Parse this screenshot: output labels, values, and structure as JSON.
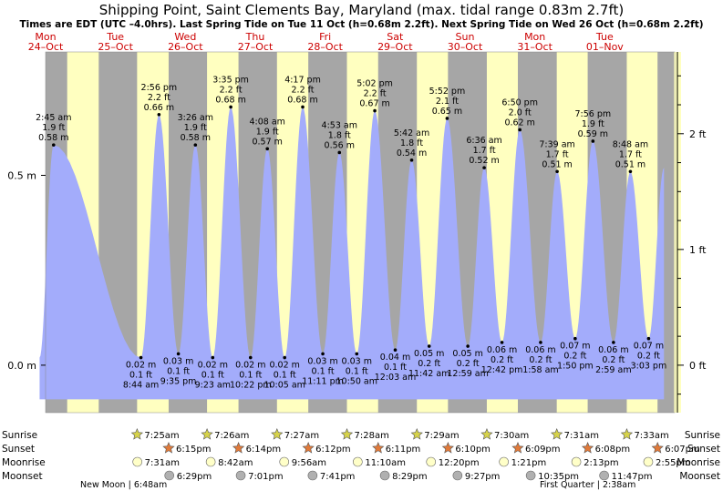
{
  "title": "Shipping Point, Saint Clements Bay, Maryland (max. tidal range 0.83m 2.7ft)",
  "subtitle": "Times are EDT (UTC –4.0hrs). Last Spring Tide on Tue 11 Oct (h=0.68m 2.2ft). Next Spring Tide on Wed 26 Oct (h=0.68m 2.2ft)",
  "colors": {
    "night": "#a6a6a6",
    "day": "#ffffc0",
    "tide": "#a3acfb",
    "title": "#000000",
    "weekend": "#cc0000"
  },
  "chart_data": {
    "type": "area",
    "title": "Shipping Point, Saint Clements Bay, Maryland (max. tidal range 0.83m 2.7ft)",
    "xlabel": "",
    "ylabel": "",
    "ylim_m": [
      -0.125,
      0.825
    ],
    "y_ticks_m": [
      {
        "value": 0.0,
        "label": "0.0 m"
      },
      {
        "value": 0.5,
        "label": "0.5 m"
      }
    ],
    "y_ticks_ft": [
      {
        "value": 0,
        "label": "0 ft"
      },
      {
        "value": 1,
        "label": "1 ft"
      },
      {
        "value": 2,
        "label": "2 ft"
      }
    ],
    "x_start_day": 24.0,
    "x_end_day": 33.0,
    "days": [
      {
        "dow": "Mon",
        "date": "24–Oct",
        "weekend": false
      },
      {
        "dow": "Tue",
        "date": "25–Oct",
        "weekend": false
      },
      {
        "dow": "Wed",
        "date": "26–Oct",
        "weekend": false
      },
      {
        "dow": "Thu",
        "date": "27–Oct",
        "weekend": false
      },
      {
        "dow": "Fri",
        "date": "28–Oct",
        "weekend": false
      },
      {
        "dow": "Sat",
        "date": "29–Oct",
        "weekend": true
      },
      {
        "dow": "Sun",
        "date": "30–Oct",
        "weekend": true
      },
      {
        "dow": "Mon",
        "date": "31–Oct",
        "weekend": false
      },
      {
        "dow": "Tue",
        "date": "01–Nov",
        "weekend": false
      }
    ],
    "daylight": [
      {
        "rise": "7:25",
        "set": "18:15"
      },
      {
        "rise": "7:25",
        "set": "18:15"
      },
      {
        "rise": "7:26",
        "set": "18:14"
      },
      {
        "rise": "7:27",
        "set": "18:12"
      },
      {
        "rise": "7:28",
        "set": "18:11"
      },
      {
        "rise": "7:29",
        "set": "18:10"
      },
      {
        "rise": "7:30",
        "set": "18:09"
      },
      {
        "rise": "7:31",
        "set": "18:08"
      },
      {
        "rise": "7:33",
        "set": "18:07"
      }
    ],
    "tides": [
      {
        "kind": "high",
        "day": 24,
        "time": "2:45 am",
        "h": 0.58,
        "ft": "1.9 ft",
        "m": "0.58 m"
      },
      {
        "kind": "low",
        "day": 25,
        "time": "8:44 am",
        "h": 0.02,
        "ft": "0.1 ft",
        "m": "0.02 m"
      },
      {
        "kind": "high",
        "day": 25,
        "time": "2:56 pm",
        "h": 0.66,
        "ft": "2.2 ft",
        "m": "0.66 m"
      },
      {
        "kind": "low",
        "day": 25,
        "time": "9:35 pm",
        "h": 0.03,
        "ft": "0.1 ft",
        "m": "0.03 m"
      },
      {
        "kind": "high",
        "day": 26,
        "time": "3:26 am",
        "h": 0.58,
        "ft": "1.9 ft",
        "m": "0.58 m"
      },
      {
        "kind": "low",
        "day": 26,
        "time": "9:23 am",
        "h": 0.02,
        "ft": "0.1 ft",
        "m": "0.02 m"
      },
      {
        "kind": "high",
        "day": 26,
        "time": "3:35 pm",
        "h": 0.68,
        "ft": "2.2 ft",
        "m": "0.68 m"
      },
      {
        "kind": "low",
        "day": 26,
        "time": "10:22 pm",
        "h": 0.02,
        "ft": "0.1 ft",
        "m": "0.02 m"
      },
      {
        "kind": "high",
        "day": 27,
        "time": "4:08 am",
        "h": 0.57,
        "ft": "1.9 ft",
        "m": "0.57 m"
      },
      {
        "kind": "low",
        "day": 27,
        "time": "10:05 am",
        "h": 0.02,
        "ft": "0.1 ft",
        "m": "0.02 m"
      },
      {
        "kind": "high",
        "day": 27,
        "time": "4:17 pm",
        "h": 0.68,
        "ft": "2.2 ft",
        "m": "0.68 m"
      },
      {
        "kind": "low",
        "day": 27,
        "time": "11:11 pm",
        "h": 0.03,
        "ft": "0.1 ft",
        "m": "0.03 m"
      },
      {
        "kind": "high",
        "day": 28,
        "time": "4:53 am",
        "h": 0.56,
        "ft": "1.8 ft",
        "m": "0.56 m"
      },
      {
        "kind": "low",
        "day": 28,
        "time": "10:50 am",
        "h": 0.03,
        "ft": "0.1 ft",
        "m": "0.03 m"
      },
      {
        "kind": "high",
        "day": 28,
        "time": "5:02 pm",
        "h": 0.67,
        "ft": "2.2 ft",
        "m": "0.67 m"
      },
      {
        "kind": "low",
        "day": 29,
        "time": "12:03 am",
        "h": 0.04,
        "ft": "0.1 ft",
        "m": "0.04 m"
      },
      {
        "kind": "high",
        "day": 29,
        "time": "5:42 am",
        "h": 0.54,
        "ft": "1.8 ft",
        "m": "0.54 m"
      },
      {
        "kind": "low",
        "day": 29,
        "time": "11:42 am",
        "h": 0.05,
        "ft": "0.2 ft",
        "m": "0.05 m"
      },
      {
        "kind": "high",
        "day": 29,
        "time": "5:52 pm",
        "h": 0.65,
        "ft": "2.1 ft",
        "m": "0.65 m"
      },
      {
        "kind": "low",
        "day": 30,
        "time": "12:59 am",
        "h": 0.05,
        "ft": "0.2 ft",
        "m": "0.05 m"
      },
      {
        "kind": "high",
        "day": 30,
        "time": "6:36 am",
        "h": 0.52,
        "ft": "1.7 ft",
        "m": "0.52 m"
      },
      {
        "kind": "low",
        "day": 30,
        "time": "12:42 pm",
        "h": 0.06,
        "ft": "0.2 ft",
        "m": "0.06 m"
      },
      {
        "kind": "high",
        "day": 30,
        "time": "6:50 pm",
        "h": 0.62,
        "ft": "2.0 ft",
        "m": "0.62 m"
      },
      {
        "kind": "low",
        "day": 31,
        "time": "1:58 am",
        "h": 0.06,
        "ft": "0.2 ft",
        "m": "0.06 m"
      },
      {
        "kind": "high",
        "day": 31,
        "time": "7:39 am",
        "h": 0.51,
        "ft": "1.7 ft",
        "m": "0.51 m"
      },
      {
        "kind": "low",
        "day": 31,
        "time": "1:50 pm",
        "h": 0.07,
        "ft": "0.2 ft",
        "m": "0.07 m"
      },
      {
        "kind": "high",
        "day": 31,
        "time": "7:56 pm",
        "h": 0.59,
        "ft": "1.9 ft",
        "m": "0.59 m"
      },
      {
        "kind": "low",
        "day": 32,
        "time": "2:59 am",
        "h": 0.06,
        "ft": "0.2 ft",
        "m": "0.06 m"
      },
      {
        "kind": "high",
        "day": 32,
        "time": "8:48 am",
        "h": 0.51,
        "ft": "1.7 ft",
        "m": "0.51 m"
      },
      {
        "kind": "low",
        "day": 32,
        "time": "3:03 pm",
        "h": 0.07,
        "ft": "0.2 ft",
        "m": "0.07 m"
      }
    ]
  },
  "rows": {
    "sunrise_label": "Sunrise",
    "sunset_label": "Sunset",
    "moonrise_label": "Moonrise",
    "moonset_label": "Moonset",
    "sunrise": [
      {
        "day": 25,
        "time": "7:25am"
      },
      {
        "day": 26,
        "time": "7:26am"
      },
      {
        "day": 27,
        "time": "7:27am"
      },
      {
        "day": 28,
        "time": "7:28am"
      },
      {
        "day": 29,
        "time": "7:29am"
      },
      {
        "day": 30,
        "time": "7:30am"
      },
      {
        "day": 31,
        "time": "7:31am"
      },
      {
        "day": 32,
        "time": "7:33am"
      }
    ],
    "sunset": [
      {
        "day": 25,
        "time": "6:15pm"
      },
      {
        "day": 26,
        "time": "6:14pm"
      },
      {
        "day": 27,
        "time": "6:12pm"
      },
      {
        "day": 28,
        "time": "6:11pm"
      },
      {
        "day": 29,
        "time": "6:10pm"
      },
      {
        "day": 30,
        "time": "6:09pm"
      },
      {
        "day": 31,
        "time": "6:08pm"
      },
      {
        "day": 32,
        "time": "6:07pm"
      }
    ],
    "moonrise": [
      {
        "day": 25,
        "time": "7:31am"
      },
      {
        "day": 26,
        "time": "8:42am"
      },
      {
        "day": 27,
        "time": "9:56am"
      },
      {
        "day": 28,
        "time": "11:10am"
      },
      {
        "day": 29,
        "time": "12:20pm"
      },
      {
        "day": 30,
        "time": "1:21pm"
      },
      {
        "day": 31,
        "time": "2:13pm"
      },
      {
        "day": 32,
        "time": "2:55pm"
      }
    ],
    "moonset": [
      {
        "day": 25,
        "time": "6:29pm"
      },
      {
        "day": 26,
        "time": "7:01pm"
      },
      {
        "day": 27,
        "time": "7:41pm"
      },
      {
        "day": 28,
        "time": "8:29pm"
      },
      {
        "day": 29,
        "time": "9:27pm"
      },
      {
        "day": 30,
        "time": "10:35pm"
      },
      {
        "day": 31,
        "time": "11:47pm"
      }
    ],
    "moon_phases": [
      {
        "label": "New Moon",
        "time": "6:48am",
        "day": 25
      },
      {
        "label": "First Quarter",
        "time": "2:38am",
        "day": 32
      }
    ]
  }
}
